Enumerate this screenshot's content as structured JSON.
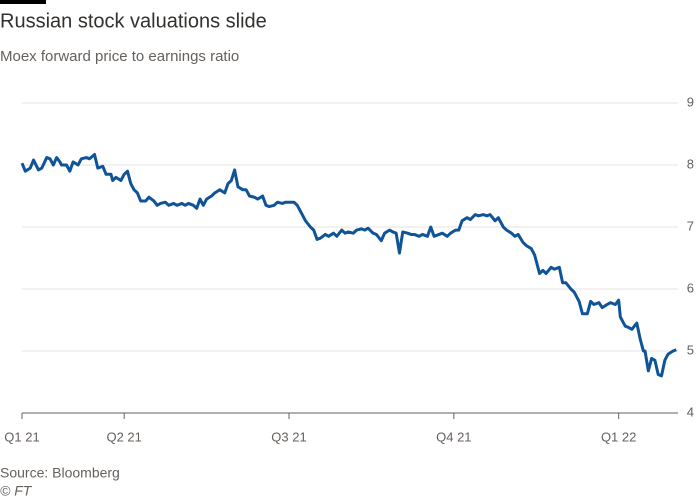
{
  "chart_data": {
    "type": "line",
    "title": "Russian stock valuations slide",
    "subtitle": "Moex forward price to earnings ratio",
    "source": "Source: Bloomberg",
    "credit": "© FT",
    "color": "#0f5499",
    "grid": true,
    "xlim": [
      0.38,
      4.36
    ],
    "xticks": [
      {
        "value": 0.38,
        "label": "Q1 21"
      },
      {
        "value": 1,
        "label": "Q2 21"
      },
      {
        "value": 2,
        "label": "Q3 21"
      },
      {
        "value": 3,
        "label": "Q4 21"
      },
      {
        "value": 4,
        "label": "Q1 22"
      }
    ],
    "ylim": [
      4,
      9
    ],
    "yticks": [
      4,
      5,
      6,
      7,
      8,
      9
    ],
    "x": [
      0.38,
      0.4,
      0.43,
      0.45,
      0.48,
      0.5,
      0.53,
      0.55,
      0.57,
      0.59,
      0.61,
      0.62,
      0.65,
      0.67,
      0.69,
      0.72,
      0.74,
      0.77,
      0.79,
      0.82,
      0.84,
      0.87,
      0.89,
      0.92,
      0.93,
      0.95,
      0.98,
      1.0,
      1.02,
      1.04,
      1.06,
      1.08,
      1.1,
      1.13,
      1.15,
      1.18,
      1.2,
      1.22,
      1.25,
      1.27,
      1.3,
      1.32,
      1.35,
      1.37,
      1.39,
      1.42,
      1.44,
      1.46,
      1.48,
      1.5,
      1.53,
      1.55,
      1.58,
      1.61,
      1.63,
      1.65,
      1.67,
      1.69,
      1.72,
      1.74,
      1.76,
      1.79,
      1.81,
      1.84,
      1.86,
      1.88,
      1.91,
      1.93,
      1.96,
      1.98,
      2.01,
      2.03,
      2.05,
      2.08,
      2.1,
      2.13,
      2.15,
      2.17,
      2.19,
      2.22,
      2.24,
      2.27,
      2.29,
      2.32,
      2.34,
      2.36,
      2.39,
      2.41,
      2.44,
      2.46,
      2.48,
      2.51,
      2.53,
      2.56,
      2.58,
      2.61,
      2.63,
      2.65,
      2.67,
      2.69,
      2.72,
      2.74,
      2.76,
      2.79,
      2.81,
      2.84,
      2.86,
      2.88,
      2.91,
      2.93,
      2.96,
      2.98,
      3.01,
      3.03,
      3.05,
      3.08,
      3.1,
      3.13,
      3.15,
      3.18,
      3.2,
      3.22,
      3.25,
      3.27,
      3.3,
      3.32,
      3.35,
      3.37,
      3.39,
      3.42,
      3.44,
      3.47,
      3.49,
      3.52,
      3.54,
      3.56,
      3.59,
      3.61,
      3.64,
      3.66,
      3.68,
      3.71,
      3.73,
      3.76,
      3.78,
      3.81,
      3.83,
      3.85,
      3.88,
      3.9,
      3.93,
      3.95,
      3.98,
      4.0,
      4.01,
      4.04,
      4.06,
      4.08,
      4.11,
      4.13,
      4.15,
      4.16,
      4.18,
      4.2,
      4.22,
      4.24,
      4.26,
      4.28,
      4.3,
      4.33,
      4.35
    ],
    "values": [
      8.03,
      7.9,
      7.95,
      8.08,
      7.92,
      7.95,
      8.12,
      8.1,
      8.0,
      8.12,
      8.05,
      8.0,
      8.0,
      7.9,
      8.05,
      8.0,
      8.1,
      8.12,
      8.1,
      8.17,
      7.95,
      7.98,
      7.85,
      7.85,
      7.75,
      7.8,
      7.75,
      7.85,
      7.9,
      7.7,
      7.6,
      7.55,
      7.42,
      7.42,
      7.48,
      7.42,
      7.35,
      7.38,
      7.4,
      7.35,
      7.38,
      7.35,
      7.38,
      7.35,
      7.38,
      7.35,
      7.3,
      7.45,
      7.35,
      7.45,
      7.5,
      7.55,
      7.6,
      7.55,
      7.7,
      7.75,
      7.92,
      7.65,
      7.6,
      7.6,
      7.5,
      7.48,
      7.45,
      7.5,
      7.35,
      7.33,
      7.35,
      7.4,
      7.38,
      7.4,
      7.4,
      7.4,
      7.35,
      7.2,
      7.1,
      7.0,
      6.95,
      6.8,
      6.82,
      6.88,
      6.85,
      6.9,
      6.85,
      6.95,
      6.9,
      6.92,
      6.9,
      6.95,
      6.97,
      6.95,
      6.98,
      6.9,
      6.88,
      6.78,
      6.9,
      6.95,
      6.92,
      6.9,
      6.58,
      6.92,
      6.9,
      6.88,
      6.88,
      6.85,
      6.88,
      6.85,
      7.0,
      6.85,
      6.88,
      6.9,
      6.85,
      6.9,
      6.95,
      6.95,
      7.1,
      7.15,
      7.12,
      7.2,
      7.18,
      7.2,
      7.18,
      7.2,
      7.1,
      7.15,
      7.0,
      6.95,
      6.9,
      6.85,
      6.88,
      6.75,
      6.7,
      6.65,
      6.55,
      6.25,
      6.3,
      6.25,
      6.35,
      6.32,
      6.35,
      6.1,
      6.1,
      6.0,
      5.95,
      5.8,
      5.6,
      5.6,
      5.8,
      5.75,
      5.78,
      5.7,
      5.75,
      5.78,
      5.75,
      5.82,
      5.55,
      5.4,
      5.38,
      5.35,
      5.45,
      5.2,
      5.0,
      5.0,
      4.68,
      4.88,
      4.85,
      4.62,
      4.6,
      4.85,
      4.95,
      5.0,
      5.02
    ]
  }
}
